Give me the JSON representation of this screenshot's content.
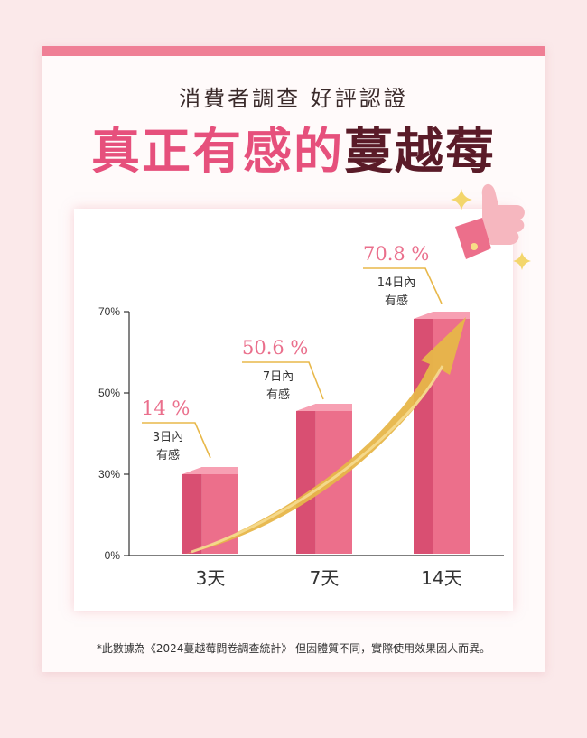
{
  "header": {
    "subtitle": "消費者調查 好評認證",
    "title_part1": "真正有感的",
    "title_part2": "蔓越莓"
  },
  "colors": {
    "accent": "#ef7f95",
    "bar_front": "#ec6f8b",
    "bar_side": "#d94f72",
    "bar_top": "#f7a0b3",
    "value_text": "#ea6f8c",
    "callout_line": "#e8b84a",
    "arrow": "#e7b649",
    "title_dark": "#5a1b28",
    "title_pink": "#e6507c"
  },
  "chart_data": {
    "type": "bar",
    "categories": [
      "3天",
      "7天",
      "14天"
    ],
    "values": [
      14,
      50.6,
      70.8
    ],
    "value_labels": [
      "14 %",
      "50.6 %",
      "70.8 %"
    ],
    "callouts": [
      [
        "3日內",
        "有感"
      ],
      [
        "7日內",
        "有感"
      ],
      [
        "14日內",
        "有感"
      ]
    ],
    "y_ticks": [
      {
        "value": 0,
        "label": "0%"
      },
      {
        "value": 30,
        "label": "30%"
      },
      {
        "value": 50,
        "label": "50%"
      },
      {
        "value": 70,
        "label": "70%"
      }
    ],
    "ylim": [
      0,
      70
    ],
    "trend_arrow": true,
    "legend": "none"
  },
  "decor": {
    "icon": "thumbs-up-icon",
    "sparkles": [
      "sparkle-icon",
      "sparkle-icon"
    ]
  },
  "footnote": "*此數據為《2024蔓越莓問卷調查統計》 但因體質不同，實際使用效果因人而異。"
}
